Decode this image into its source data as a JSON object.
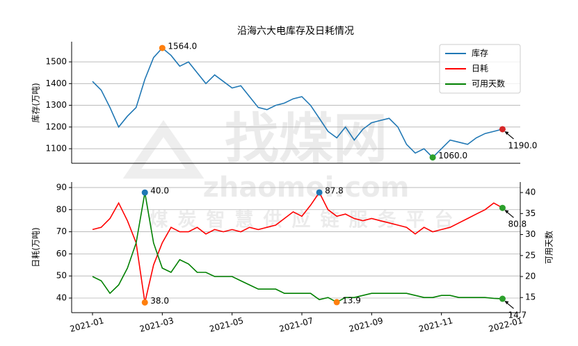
{
  "watermark": {
    "brand": "找煤网",
    "url": "zhaomei.com",
    "slogan": "煤炭智慧供应链服务平台"
  },
  "chart_data": [
    {
      "type": "line",
      "title": "沿海六大电库存及日耗情况",
      "y_label": "库存(万吨)",
      "categories": [
        "2021-01",
        null,
        null,
        null,
        null,
        null,
        null,
        null,
        "2021-03",
        null,
        null,
        null,
        null,
        null,
        null,
        null,
        "2021-05",
        null,
        null,
        null,
        null,
        null,
        null,
        null,
        "2021-07",
        null,
        null,
        null,
        null,
        null,
        null,
        null,
        "2021-09",
        null,
        null,
        null,
        null,
        null,
        null,
        null,
        "2021-11",
        null,
        null,
        null,
        null,
        null,
        null,
        null,
        "2022-01"
      ],
      "ylim": [
        1033,
        1593
      ],
      "yticks": [
        1100,
        1200,
        1300,
        1400,
        1500
      ],
      "grid": true,
      "legend": "upper right",
      "series": [
        {
          "name": "库存",
          "color": "#1f77b4",
          "values": [
            1410,
            1370,
            1290,
            1200,
            1250,
            1290,
            1420,
            1520,
            1564,
            1530,
            1480,
            1500,
            1450,
            1400,
            1440,
            1410,
            1380,
            1390,
            1340,
            1290,
            1280,
            1300,
            1310,
            1330,
            1340,
            1300,
            1240,
            1180,
            1150,
            1200,
            1140,
            1190,
            1220,
            1230,
            1240,
            1200,
            1120,
            1080,
            1100,
            1060,
            1100,
            1140,
            1130,
            1120,
            1150,
            1170,
            1180,
            1190,
            null
          ],
          "value_labels": [
            null,
            null,
            null,
            null,
            null,
            null,
            null,
            null,
            "1564.0",
            null,
            null,
            null,
            null,
            null,
            null,
            null,
            null,
            null,
            null,
            null,
            null,
            null,
            null,
            null,
            null,
            null,
            null,
            null,
            null,
            null,
            null,
            null,
            null,
            null,
            null,
            null,
            null,
            null,
            null,
            "1060.0",
            null,
            null,
            null,
            null,
            null,
            null,
            null,
            "1190.0",
            null
          ],
          "value_label_colors": [
            null,
            null,
            null,
            null,
            null,
            null,
            null,
            null,
            "#ff7f0e",
            null,
            null,
            null,
            null,
            null,
            null,
            null,
            null,
            null,
            null,
            null,
            null,
            null,
            null,
            null,
            null,
            null,
            null,
            null,
            null,
            null,
            null,
            null,
            null,
            null,
            null,
            null,
            null,
            null,
            null,
            "#2ca02c",
            null,
            null,
            null,
            null,
            null,
            null,
            null,
            "#d62728",
            null
          ]
        }
      ]
    },
    {
      "type": "line",
      "y_label": "日耗(万吨)",
      "y2_label": "可用天数",
      "categories": [
        "2021-01",
        null,
        null,
        null,
        null,
        null,
        null,
        null,
        "2021-03",
        null,
        null,
        null,
        null,
        null,
        null,
        null,
        "2021-05",
        null,
        null,
        null,
        null,
        null,
        null,
        null,
        "2021-07",
        null,
        null,
        null,
        null,
        null,
        null,
        null,
        "2021-09",
        null,
        null,
        null,
        null,
        null,
        null,
        null,
        "2021-11",
        null,
        null,
        null,
        null,
        null,
        null,
        null,
        "2022-01"
      ],
      "ylim": [
        33.4,
        92.5
      ],
      "yticks": [
        40,
        50,
        60,
        70,
        80,
        90
      ],
      "y2lim": [
        11.4,
        42.5
      ],
      "y2ticks": [
        15,
        20,
        25,
        30,
        35,
        40
      ],
      "grid": true,
      "series": [
        {
          "name": "日耗",
          "color": "#ff0000",
          "values": [
            71,
            72,
            76,
            83,
            75,
            65,
            38,
            55,
            65,
            72,
            70,
            70,
            72,
            69,
            71,
            70,
            71,
            70,
            72,
            71,
            72,
            73,
            76,
            79,
            77,
            82,
            87.8,
            80,
            77,
            78,
            76,
            75,
            76,
            75,
            74,
            73,
            72,
            69,
            72,
            70,
            71,
            72,
            74,
            76,
            78,
            80,
            83,
            80.8,
            null
          ],
          "value_labels": [
            null,
            null,
            null,
            null,
            null,
            null,
            "38.0",
            null,
            null,
            null,
            null,
            null,
            null,
            null,
            null,
            null,
            null,
            null,
            null,
            null,
            null,
            null,
            null,
            null,
            null,
            null,
            "87.8",
            null,
            null,
            null,
            null,
            null,
            null,
            null,
            null,
            null,
            null,
            null,
            null,
            null,
            null,
            null,
            null,
            null,
            null,
            null,
            null,
            "80.8",
            null
          ],
          "value_label_colors": [
            null,
            null,
            null,
            null,
            null,
            null,
            "#ff7f0e",
            null,
            null,
            null,
            null,
            null,
            null,
            null,
            null,
            null,
            null,
            null,
            null,
            null,
            null,
            null,
            null,
            null,
            null,
            null,
            "#1f77b4",
            null,
            null,
            null,
            null,
            null,
            null,
            null,
            null,
            null,
            null,
            null,
            null,
            null,
            null,
            null,
            null,
            null,
            null,
            null,
            null,
            "#2ca02c",
            null
          ]
        },
        {
          "name": "可用天数",
          "color": "#008000",
          "axis": "y2",
          "values": [
            20,
            19,
            16,
            18,
            22,
            28,
            40,
            28,
            22,
            21,
            24,
            23,
            21,
            21,
            20,
            20,
            20,
            19,
            18,
            17,
            17,
            17,
            16,
            16,
            16,
            16,
            14.5,
            15,
            13.9,
            15,
            15,
            15.5,
            16,
            16,
            16,
            16,
            16,
            15.5,
            15,
            15,
            15.5,
            15.5,
            15,
            15,
            15,
            15,
            14.8,
            14.7,
            null
          ],
          "value_labels": [
            null,
            null,
            null,
            null,
            null,
            null,
            "40.0",
            null,
            null,
            null,
            null,
            null,
            null,
            null,
            null,
            null,
            null,
            null,
            null,
            null,
            null,
            null,
            null,
            null,
            null,
            null,
            null,
            null,
            "13.9",
            null,
            null,
            null,
            null,
            null,
            null,
            null,
            null,
            null,
            null,
            null,
            null,
            null,
            null,
            null,
            null,
            null,
            null,
            "14.7",
            null
          ],
          "value_label_colors": [
            null,
            null,
            null,
            null,
            null,
            null,
            "#1f77b4",
            null,
            null,
            null,
            null,
            null,
            null,
            null,
            null,
            null,
            null,
            null,
            null,
            null,
            null,
            null,
            null,
            null,
            null,
            null,
            null,
            null,
            "#ff7f0e",
            null,
            null,
            null,
            null,
            null,
            null,
            null,
            null,
            null,
            null,
            null,
            null,
            null,
            null,
            null,
            null,
            null,
            null,
            "#2ca02c",
            null
          ]
        }
      ]
    }
  ]
}
